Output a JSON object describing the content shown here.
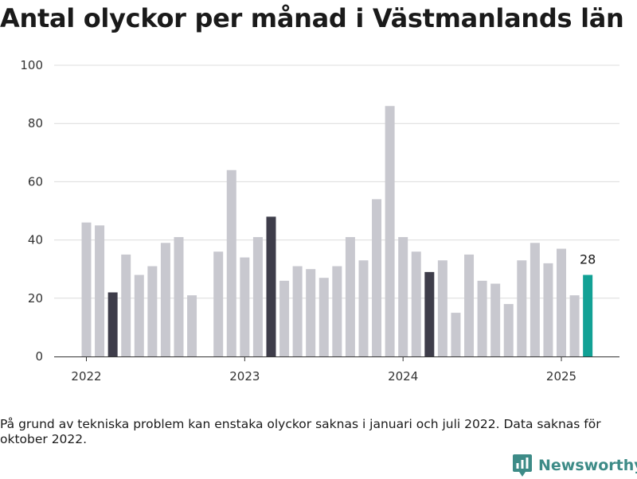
{
  "title": "Antal olyckor per månad i Västmanlands län",
  "footnote": "På grund av tekniska problem kan enstaka olyckor saknas i januari och juli 2022. Data saknas för oktober 2022.",
  "brand": {
    "name": "Newsworthy",
    "icon": "newsworthy-logo-icon"
  },
  "colors": {
    "default": "#c8c8cf",
    "march": "#3e3d4a",
    "latest": "#12a195"
  },
  "chart_data": {
    "type": "bar",
    "title": "Antal olyckor per månad i Västmanlands län",
    "xlabel": "",
    "ylabel": "",
    "ylim": [
      0,
      100
    ],
    "yticks": [
      0,
      20,
      40,
      60,
      80,
      100
    ],
    "grid": true,
    "x_tick_labels": [
      {
        "label": "2022",
        "at": "2022-01"
      },
      {
        "label": "2023",
        "at": "2023-01"
      },
      {
        "label": "2024",
        "at": "2024-01"
      },
      {
        "label": "2025",
        "at": "2025-01"
      }
    ],
    "categories": [
      "2022-01",
      "2022-02",
      "2022-03",
      "2022-04",
      "2022-05",
      "2022-06",
      "2022-07",
      "2022-08",
      "2022-09",
      "2022-10",
      "2022-11",
      "2022-12",
      "2023-01",
      "2023-02",
      "2023-03",
      "2023-04",
      "2023-05",
      "2023-06",
      "2023-07",
      "2023-08",
      "2023-09",
      "2023-10",
      "2023-11",
      "2023-12",
      "2024-01",
      "2024-02",
      "2024-03",
      "2024-04",
      "2024-05",
      "2024-06",
      "2024-07",
      "2024-08",
      "2024-09",
      "2024-10",
      "2024-11",
      "2024-12",
      "2025-01",
      "2025-02",
      "2025-03"
    ],
    "values": [
      46,
      45,
      22,
      35,
      28,
      31,
      39,
      41,
      21,
      null,
      36,
      64,
      34,
      41,
      48,
      26,
      31,
      30,
      27,
      31,
      41,
      33,
      54,
      86,
      41,
      36,
      29,
      33,
      15,
      35,
      26,
      25,
      18,
      33,
      39,
      32,
      37,
      21,
      28
    ],
    "highlight_march": true,
    "data_labels": [
      {
        "category": "2025-03",
        "text": "28"
      }
    ]
  }
}
